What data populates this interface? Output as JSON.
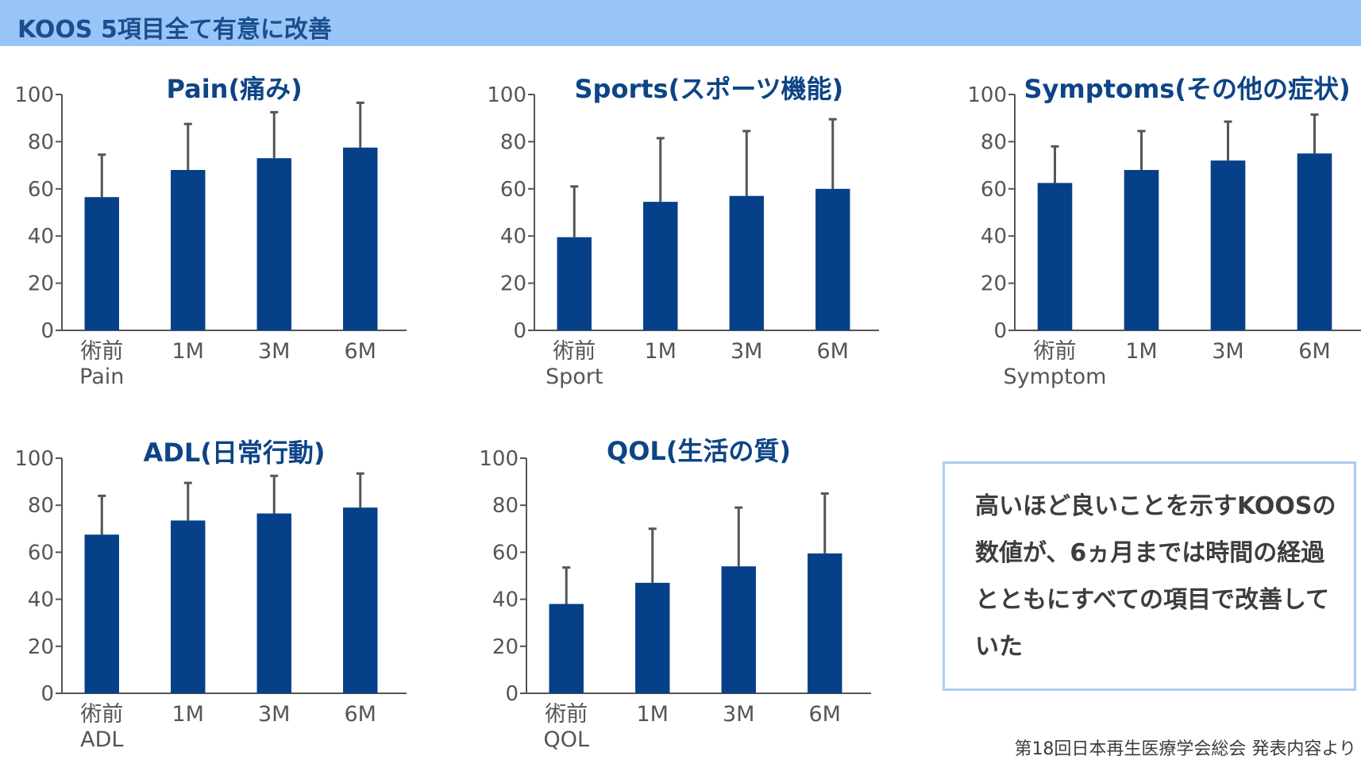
{
  "header": {
    "title": "KOOS 5項目全て有意に改善"
  },
  "note": {
    "text": "高いほど良いことを示すKOOSの数値が、6ヵ月までは時間の経過とともにすべての項目で改善していた"
  },
  "source": {
    "text": "第18回日本再生医療学会総会 発表内容より"
  },
  "colors": {
    "bar": "#054088",
    "error_bar": "#555555",
    "axis": "#555555",
    "tick_text": "#555555",
    "title": "#0d4485"
  },
  "chart_data": [
    {
      "type": "bar",
      "title": "Pain(痛み)",
      "categories": [
        "術前",
        "1M",
        "3M",
        "6M"
      ],
      "category_sub": "Pain",
      "values": [
        56.5,
        68,
        73,
        77.5
      ],
      "error_upper": [
        74.5,
        87.5,
        92.5,
        96.5
      ],
      "ylim": [
        0,
        100
      ],
      "yticks": [
        "0",
        "20",
        "40",
        "60",
        "80",
        "100"
      ]
    },
    {
      "type": "bar",
      "title": "Sports(スポーツ機能)",
      "categories": [
        "術前",
        "1M",
        "3M",
        "6M"
      ],
      "category_sub": "Sport",
      "values": [
        39.5,
        54.5,
        57,
        60
      ],
      "error_upper": [
        61,
        81.5,
        84.5,
        89.5
      ],
      "ylim": [
        0,
        100
      ],
      "yticks": [
        "0",
        "20",
        "40",
        "60",
        "80",
        "100"
      ]
    },
    {
      "type": "bar",
      "title": "Symptoms(その他の症状)",
      "categories": [
        "術前",
        "1M",
        "3M",
        "6M"
      ],
      "category_sub": "Symptom",
      "values": [
        62.5,
        68,
        72,
        75
      ],
      "error_upper": [
        78,
        84.5,
        88.5,
        91.5
      ],
      "ylim": [
        0,
        100
      ],
      "yticks": [
        "0",
        "20",
        "40",
        "60",
        "80",
        "100"
      ]
    },
    {
      "type": "bar",
      "title": "ADL(日常行動)",
      "categories": [
        "術前",
        "1M",
        "3M",
        "6M"
      ],
      "category_sub": "ADL",
      "values": [
        67.5,
        73.5,
        76.5,
        79
      ],
      "error_upper": [
        84,
        89.5,
        92.5,
        93.5
      ],
      "ylim": [
        0,
        100
      ],
      "yticks": [
        "0",
        "20",
        "40",
        "60",
        "80",
        "100"
      ]
    },
    {
      "type": "bar",
      "title": "QOL(生活の質)",
      "categories": [
        "術前",
        "1M",
        "3M",
        "6M"
      ],
      "category_sub": "QOL",
      "values": [
        38,
        47,
        54,
        59.5
      ],
      "error_upper": [
        53.5,
        70,
        79,
        85
      ],
      "ylim": [
        0,
        100
      ],
      "yticks": [
        "0",
        "20",
        "40",
        "60",
        "80",
        "100"
      ]
    }
  ]
}
